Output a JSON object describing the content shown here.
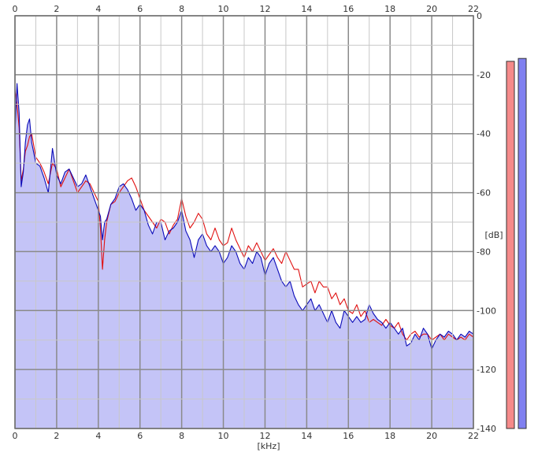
{
  "chart_data": {
    "type": "area",
    "xlabel": "[kHz]",
    "ylabel": "[dB]",
    "xlim": [
      0,
      22
    ],
    "ylim": [
      -140,
      0
    ],
    "x_ticks": [
      "0",
      "2",
      "4",
      "6",
      "8",
      "10",
      "12",
      "14",
      "16",
      "18",
      "20",
      "22"
    ],
    "y_ticks": [
      "0",
      "-20",
      "-40",
      "-60",
      "-80",
      "-100",
      "-120",
      "-140"
    ],
    "grid": true,
    "series": [
      {
        "color": "#e01010",
        "fill": "none",
        "x": [
          0,
          0.1,
          0.2,
          0.3,
          0.4,
          0.5,
          0.6,
          0.7,
          0.8,
          1.0,
          1.2,
          1.4,
          1.6,
          1.8,
          2.0,
          2.2,
          2.4,
          2.6,
          2.8,
          3.0,
          3.2,
          3.4,
          3.6,
          3.8,
          4.0,
          4.1,
          4.2,
          4.3,
          4.4,
          4.6,
          4.8,
          5.0,
          5.2,
          5.4,
          5.6,
          5.8,
          6.0,
          6.2,
          6.4,
          6.6,
          6.8,
          7.0,
          7.2,
          7.4,
          7.6,
          7.8,
          8.0,
          8.2,
          8.4,
          8.6,
          8.8,
          9.0,
          9.2,
          9.4,
          9.6,
          9.8,
          10.0,
          10.2,
          10.4,
          10.6,
          10.8,
          11.0,
          11.2,
          11.4,
          11.6,
          11.8,
          12.0,
          12.2,
          12.4,
          12.6,
          12.8,
          13.0,
          13.2,
          13.4,
          13.6,
          13.8,
          14.0,
          14.2,
          14.4,
          14.6,
          14.8,
          15.0,
          15.2,
          15.4,
          15.6,
          15.8,
          16.0,
          16.2,
          16.4,
          16.6,
          16.8,
          17.0,
          17.2,
          17.4,
          17.6,
          17.8,
          18.0,
          18.2,
          18.4,
          18.6,
          18.8,
          19.0,
          19.2,
          19.4,
          19.6,
          19.8,
          20.0,
          20.2,
          20.4,
          20.6,
          20.8,
          21.0,
          21.2,
          21.4,
          21.6,
          21.8,
          22.0
        ],
        "y": [
          -25,
          -30,
          -38,
          -56,
          -52,
          -46,
          -44,
          -41,
          -40,
          -48,
          -50,
          -53,
          -57,
          -50,
          -52,
          -58,
          -55,
          -52,
          -56,
          -60,
          -58,
          -56,
          -57,
          -60,
          -63,
          -72,
          -86,
          -76,
          -70,
          -64,
          -63,
          -60,
          -58,
          -56,
          -55,
          -58,
          -62,
          -66,
          -68,
          -70,
          -72,
          -69,
          -70,
          -74,
          -71,
          -69,
          -62,
          -68,
          -72,
          -70,
          -67,
          -69,
          -74,
          -76,
          -72,
          -76,
          -78,
          -77,
          -72,
          -76,
          -79,
          -82,
          -78,
          -80,
          -77,
          -80,
          -83,
          -81,
          -79,
          -82,
          -84,
          -80,
          -83,
          -86,
          -86,
          -92,
          -91,
          -90,
          -94,
          -90,
          -92,
          -92,
          -96,
          -94,
          -98,
          -96,
          -100,
          -101,
          -98,
          -102,
          -100,
          -104,
          -103,
          -104,
          -105,
          -103,
          -105,
          -106,
          -104,
          -108,
          -110,
          -108,
          -107,
          -109,
          -108,
          -108,
          -110,
          -109,
          -108,
          -110,
          -108,
          -109,
          -110,
          -109,
          -110,
          -108,
          -109
        ]
      },
      {
        "color": "#0a0ab8",
        "fill": "#c4c4f7",
        "x": [
          0,
          0.1,
          0.2,
          0.3,
          0.4,
          0.5,
          0.6,
          0.7,
          0.8,
          1.0,
          1.2,
          1.4,
          1.6,
          1.8,
          2.0,
          2.2,
          2.4,
          2.6,
          2.8,
          3.0,
          3.2,
          3.4,
          3.6,
          3.8,
          4.0,
          4.1,
          4.2,
          4.3,
          4.4,
          4.6,
          4.8,
          5.0,
          5.2,
          5.4,
          5.6,
          5.8,
          6.0,
          6.2,
          6.4,
          6.6,
          6.8,
          7.0,
          7.2,
          7.4,
          7.6,
          7.8,
          8.0,
          8.2,
          8.4,
          8.6,
          8.8,
          9.0,
          9.2,
          9.4,
          9.6,
          9.8,
          10.0,
          10.2,
          10.4,
          10.6,
          10.8,
          11.0,
          11.2,
          11.4,
          11.6,
          11.8,
          12.0,
          12.2,
          12.4,
          12.6,
          12.8,
          13.0,
          13.2,
          13.4,
          13.6,
          13.8,
          14.0,
          14.2,
          14.4,
          14.6,
          14.8,
          15.0,
          15.2,
          15.4,
          15.6,
          15.8,
          16.0,
          16.2,
          16.4,
          16.6,
          16.8,
          17.0,
          17.2,
          17.4,
          17.6,
          17.8,
          18.0,
          18.2,
          18.4,
          18.6,
          18.8,
          19.0,
          19.2,
          19.4,
          19.6,
          19.8,
          20.0,
          20.2,
          20.4,
          20.6,
          20.8,
          21.0,
          21.2,
          21.4,
          21.6,
          21.8,
          22.0
        ],
        "y": [
          -40,
          -23,
          -33,
          -58,
          -53,
          -43,
          -37,
          -35,
          -43,
          -50,
          -51,
          -55,
          -60,
          -45,
          -54,
          -57,
          -53,
          -52,
          -55,
          -58,
          -57,
          -54,
          -58,
          -62,
          -66,
          -68,
          -76,
          -70,
          -69,
          -64,
          -62,
          -58,
          -57,
          -59,
          -62,
          -66,
          -64,
          -66,
          -71,
          -74,
          -70,
          -70,
          -76,
          -73,
          -72,
          -70,
          -66,
          -73,
          -76,
          -82,
          -76,
          -74,
          -78,
          -80,
          -78,
          -80,
          -84,
          -82,
          -78,
          -80,
          -84,
          -86,
          -82,
          -84,
          -80,
          -82,
          -88,
          -84,
          -82,
          -86,
          -90,
          -92,
          -90,
          -95,
          -98,
          -100,
          -98,
          -96,
          -100,
          -98,
          -101,
          -104,
          -100,
          -104,
          -106,
          -100,
          -102,
          -104,
          -102,
          -104,
          -103,
          -98,
          -101,
          -103,
          -104,
          -106,
          -104,
          -106,
          -108,
          -106,
          -112,
          -111,
          -108,
          -110,
          -106,
          -108,
          -113,
          -110,
          -108,
          -109,
          -107,
          -108,
          -110,
          -108,
          -109,
          -107,
          -108
        ]
      }
    ],
    "level_meters": [
      {
        "color": "#f58a8a",
        "level": 0.893
      },
      {
        "color": "#8080f0",
        "level": 0.9
      }
    ]
  }
}
